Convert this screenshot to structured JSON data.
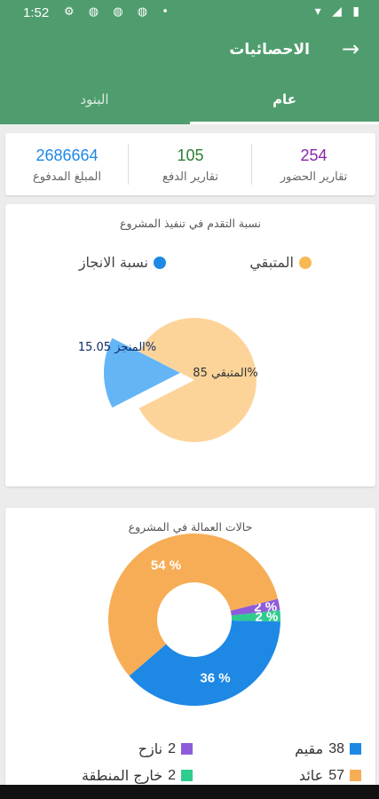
{
  "status_bar": {
    "time": "1:52"
  },
  "header": {
    "title": "الاحصائيات",
    "back_icon": "arrow-right-icon"
  },
  "tabs": [
    {
      "label": "عام",
      "active": true
    },
    {
      "label": "البنود",
      "active": false
    }
  ],
  "stats": [
    {
      "value": "254",
      "label": "تقارير الحضور",
      "color": "#8e24aa"
    },
    {
      "value": "105",
      "label": "تقارير الدفع",
      "color": "#2e7d32"
    },
    {
      "value": "2686664",
      "label": "المبلغ المدفوع",
      "color": "#1e88e5"
    }
  ],
  "progress": {
    "title": "نسبة التقدم في تنفيذ المشروع",
    "legend": [
      {
        "label": "المتبقي",
        "color": "#f7b955"
      },
      {
        "label": "نسبة الانجاز",
        "color": "#1e88e5"
      }
    ],
    "chart_data": {
      "type": "pie",
      "title": "نسبة التقدم في تنفيذ المشروع",
      "slices": [
        {
          "label": "المتبقي",
          "value": 85,
          "value_label": "85%",
          "color": "#fcd49a"
        },
        {
          "label": "المنجز",
          "value": 15.05,
          "value_label": "15.05%",
          "color": "#64b5f6"
        }
      ]
    }
  },
  "labor": {
    "title": "حالات العمالة في المشروع",
    "chart_data": {
      "type": "pie",
      "title": "حالات العمالة في المشروع",
      "slices": [
        {
          "label": "مقيم",
          "count": "38",
          "value": 36,
          "value_label": "36 %",
          "color": "#1e88e5"
        },
        {
          "label": "عائد",
          "count": "57",
          "value": 54,
          "value_label": "54 %",
          "color": "#f6ad55"
        },
        {
          "label": "نازح",
          "count": "2",
          "value": 2,
          "value_label": "2 %",
          "color": "#8e5cd9"
        },
        {
          "label": "خارج المنطقة",
          "count": "2",
          "value": 2,
          "value_label": "2 %",
          "color": "#2ecc8f"
        }
      ]
    }
  }
}
